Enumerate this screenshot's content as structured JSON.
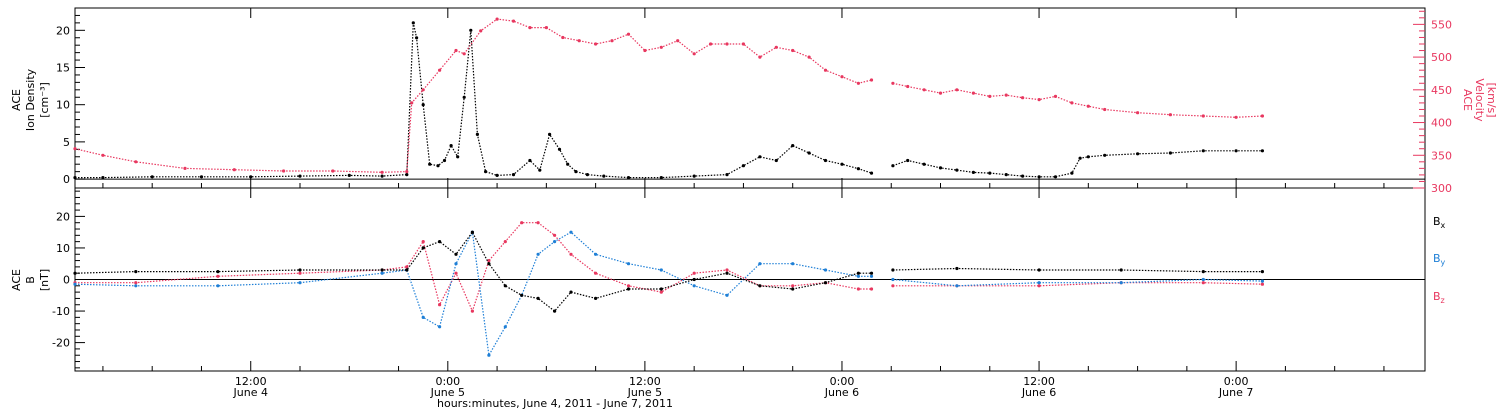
{
  "chart_data": [
    {
      "type": "scatter",
      "panel": "density-velocity",
      "xlabel": "hours:minutes, June  4, 2011 - June  7, 2011",
      "x_ticks": [
        {
          "time": "12:00",
          "date": "June 4",
          "hour": 12
        },
        {
          "time": "0:00",
          "date": "June 5",
          "hour": 24
        },
        {
          "time": "12:00",
          "date": "June 5",
          "hour": 36
        },
        {
          "time": "0:00",
          "date": "June 6",
          "hour": 48
        },
        {
          "time": "12:00",
          "date": "June 6",
          "hour": 60
        },
        {
          "time": "0:00",
          "date": "June 7",
          "hour": 72
        }
      ],
      "xlim_hours": [
        1.3,
        83.5
      ],
      "left_axis": {
        "title_lines": [
          "ACE",
          "Ion Density",
          "[cm⁻³]"
        ],
        "ylim": [
          -1.2,
          23
        ],
        "ticks": [
          "0",
          "5",
          "10",
          "15",
          "20"
        ],
        "color": "#000000"
      },
      "right_axis": {
        "title_lines": [
          "ACE",
          "Velocity",
          "[km/s]"
        ],
        "ylim": [
          300,
          575
        ],
        "ticks": [
          "300",
          "350",
          "400",
          "450",
          "500",
          "550"
        ],
        "color": "#e8375f"
      },
      "series": [
        {
          "name": "Ion Density",
          "axis": "left",
          "color": "#000000",
          "x": [
            1.3,
            3,
            6,
            9,
            12,
            15,
            18,
            20,
            21.5,
            21.9,
            22.1,
            22.5,
            22.9,
            23.4,
            23.8,
            24.2,
            24.6,
            25,
            25.4,
            25.8,
            26.3,
            27,
            28,
            29,
            29.6,
            30.2,
            30.8,
            31.3,
            31.8,
            32.5,
            33.5,
            35,
            37,
            39,
            41,
            42,
            43,
            44,
            45,
            46,
            47,
            48,
            49,
            49.8,
            51.1,
            52,
            53,
            54,
            55,
            56,
            57,
            58,
            59,
            60,
            61,
            62,
            62.5,
            63,
            64,
            66,
            68,
            70,
            72,
            73.6
          ],
          "y": [
            0.2,
            0.2,
            0.3,
            0.3,
            0.3,
            0.4,
            0.5,
            0.4,
            0.6,
            21,
            19,
            10,
            2,
            1.8,
            2.5,
            4.5,
            3,
            11,
            20,
            6,
            1,
            0.5,
            0.6,
            2.5,
            1.2,
            6,
            4,
            2,
            1,
            0.6,
            0.4,
            0.2,
            0.2,
            0.4,
            0.6,
            1.8,
            3,
            2.5,
            4.5,
            3.5,
            2.5,
            2,
            1.4,
            0.8,
            1.8,
            2.5,
            2,
            1.5,
            1.2,
            0.9,
            0.8,
            0.6,
            0.4,
            0.3,
            0.3,
            0.8,
            2.8,
            3,
            3.2,
            3.4,
            3.5,
            3.8,
            3.8,
            3.8
          ]
        },
        {
          "name": "Velocity",
          "axis": "right",
          "color": "#e8375f",
          "x": [
            1.3,
            3,
            5,
            8,
            11,
            14,
            17,
            20,
            21.5,
            21.8,
            22.5,
            23.5,
            24.5,
            25,
            26,
            27,
            28,
            29,
            30,
            31,
            32,
            33,
            34,
            35,
            36,
            37,
            38,
            39,
            40,
            41,
            42,
            43,
            44,
            45,
            46,
            47,
            48,
            49,
            49.8,
            51.1,
            52,
            53,
            54,
            55,
            56,
            57,
            58,
            59,
            60,
            61,
            62,
            63,
            64,
            66,
            68,
            70,
            72,
            73.6
          ],
          "y": [
            360,
            350,
            340,
            330,
            328,
            326,
            326,
            324,
            325,
            430,
            450,
            480,
            510,
            505,
            540,
            558,
            555,
            545,
            545,
            530,
            525,
            520,
            525,
            535,
            510,
            515,
            525,
            505,
            520,
            520,
            520,
            500,
            515,
            510,
            500,
            480,
            470,
            460,
            465,
            460,
            455,
            450,
            445,
            450,
            445,
            440,
            442,
            438,
            435,
            440,
            430,
            425,
            420,
            415,
            412,
            410,
            408,
            410
          ]
        }
      ]
    },
    {
      "type": "scatter",
      "panel": "magnetic-field",
      "xlabel": "hours:minutes, June  4, 2011 - June  7, 2011",
      "xlim_hours": [
        1.3,
        83.5
      ],
      "left_axis": {
        "title_lines": [
          "ACE",
          "B",
          "[nT]"
        ],
        "ylim": [
          -29,
          29
        ],
        "ticks": [
          "-20",
          "-10",
          "0",
          "10",
          "20"
        ],
        "color": "#000000"
      },
      "legend": [
        {
          "label": "Bx",
          "main": "B",
          "sub": "x",
          "color": "#000000"
        },
        {
          "label": "By",
          "main": "B",
          "sub": "y",
          "color": "#1e7fd6"
        },
        {
          "label": "Bz",
          "main": "B",
          "sub": "z",
          "color": "#e8375f"
        }
      ],
      "series": [
        {
          "name": "Bx",
          "color": "#000000",
          "x": [
            1.3,
            5,
            10,
            15,
            20,
            21.5,
            22.5,
            23.5,
            24.5,
            25.5,
            26.5,
            27.5,
            28.5,
            29.5,
            30.5,
            31.5,
            33,
            35,
            37,
            39,
            41,
            43,
            45,
            47,
            49,
            49.8,
            51.1,
            55,
            60,
            65,
            70,
            73.6
          ],
          "y": [
            2,
            2.5,
            2.5,
            3,
            3,
            3,
            10,
            12,
            8,
            15,
            5,
            -2,
            -5,
            -6,
            -10,
            -4,
            -6,
            -3,
            -3,
            0,
            2,
            -2,
            -3,
            -1,
            2,
            2,
            3,
            3.5,
            3,
            3,
            2.5,
            2.5
          ]
        },
        {
          "name": "By",
          "color": "#1e7fd6",
          "x": [
            1.3,
            5,
            10,
            15,
            20,
            21.5,
            22.5,
            23.5,
            24.5,
            25.5,
            26.5,
            27.5,
            28.5,
            29.5,
            30.5,
            31.5,
            33,
            35,
            37,
            39,
            41,
            43,
            45,
            47,
            49,
            49.8,
            51.1,
            55,
            60,
            65,
            70,
            73.6
          ],
          "y": [
            -1.5,
            -2,
            -2,
            -1,
            2,
            3,
            -12,
            -15,
            5,
            15,
            -24,
            -15,
            -5,
            8,
            12,
            15,
            8,
            5,
            3,
            -2,
            -5,
            5,
            5,
            3,
            1,
            1,
            0,
            -2,
            -1,
            -1,
            0,
            -0.5
          ]
        },
        {
          "name": "Bz",
          "color": "#e8375f",
          "x": [
            1.3,
            5,
            10,
            15,
            20,
            21.5,
            22.5,
            23.5,
            24.5,
            25.5,
            26.5,
            27.5,
            28.5,
            29.5,
            30.5,
            31.5,
            33,
            35,
            37,
            39,
            41,
            43,
            45,
            47,
            49,
            49.8,
            51.1,
            55,
            60,
            65,
            70,
            73.6
          ],
          "y": [
            -1,
            -1,
            1,
            2,
            3,
            4,
            12,
            -8,
            2,
            -10,
            6,
            12,
            18,
            18,
            14,
            8,
            2,
            -2,
            -4,
            2,
            3,
            -2,
            -2,
            -1,
            -3,
            -3,
            -2,
            -2,
            -2,
            -1,
            -1,
            -1.5
          ]
        }
      ]
    }
  ]
}
